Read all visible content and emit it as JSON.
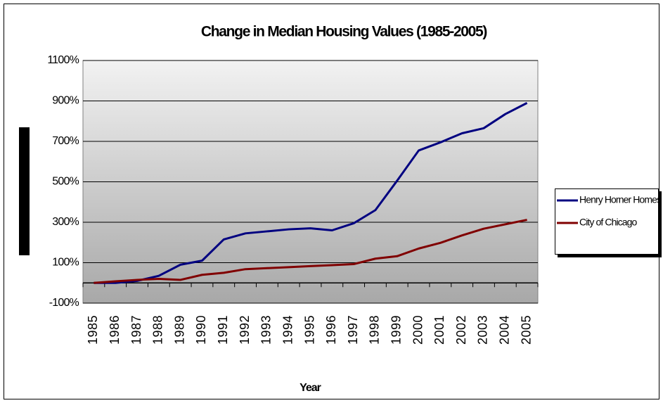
{
  "chart_data": {
    "type": "line",
    "title": "Change in Median Housing Values (1985-2005)",
    "xlabel": "Year",
    "categories": [
      "1985",
      "1986",
      "1987",
      "1988",
      "1989",
      "1990",
      "1991",
      "1992",
      "1993",
      "1994",
      "1995",
      "1996",
      "1997",
      "1998",
      "1999",
      "2000",
      "2001",
      "2002",
      "2003",
      "2004",
      "2005"
    ],
    "series": [
      {
        "name": "Henry Horner Homes",
        "color": "#000080",
        "values": [
          0,
          0,
          10,
          35,
          90,
          110,
          215,
          245,
          255,
          265,
          270,
          260,
          295,
          360,
          505,
          655,
          695,
          740,
          765,
          835,
          890
        ]
      },
      {
        "name": "City of Chicago",
        "color": "#800000",
        "values": [
          0,
          8,
          15,
          20,
          15,
          40,
          50,
          68,
          73,
          78,
          83,
          88,
          93,
          120,
          132,
          170,
          198,
          235,
          268,
          290,
          312
        ]
      }
    ],
    "ylim": [
      -100,
      1100
    ],
    "yticks": [
      {
        "value": -100,
        "label": "-100%"
      },
      {
        "value": 100,
        "label": "100%"
      },
      {
        "value": 300,
        "label": "300%"
      },
      {
        "value": 500,
        "label": "500%"
      },
      {
        "value": 700,
        "label": "700%"
      },
      {
        "value": 900,
        "label": "900%"
      },
      {
        "value": 1100,
        "label": "1100%"
      }
    ],
    "grid": true,
    "legend": "right"
  }
}
